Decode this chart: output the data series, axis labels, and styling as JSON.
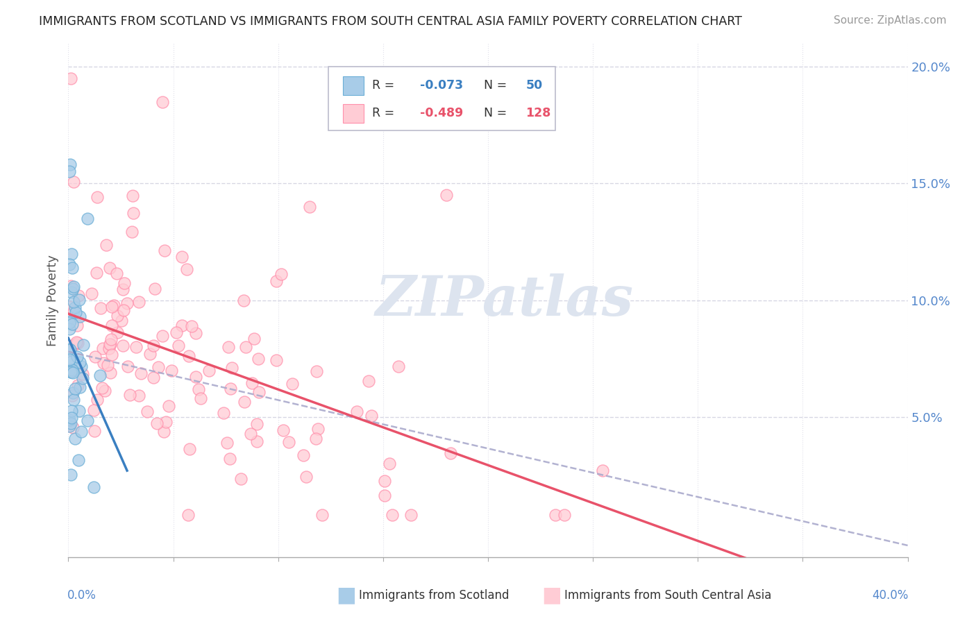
{
  "title": "IMMIGRANTS FROM SCOTLAND VS IMMIGRANTS FROM SOUTH CENTRAL ASIA FAMILY POVERTY CORRELATION CHART",
  "source": "Source: ZipAtlas.com",
  "ylabel": "Family Poverty",
  "right_yticks": [
    "20.0%",
    "15.0%",
    "10.0%",
    "5.0%"
  ],
  "right_ytick_vals": [
    0.2,
    0.15,
    0.1,
    0.05
  ],
  "scotland_color": "#a8cce8",
  "scotland_edge": "#6aaed6",
  "sca_color": "#ffccd5",
  "sca_edge": "#ff8fab",
  "scotland_line_color": "#3a7fc1",
  "sca_line_color": "#e8526a",
  "dashed_line_color": "#aaaacc",
  "background_color": "#ffffff",
  "grid_color": "#ccccdd",
  "xlim": [
    0.0,
    0.4
  ],
  "ylim": [
    -0.01,
    0.21
  ],
  "watermark": "ZIPatlas",
  "watermark_color": "#dde4ef"
}
